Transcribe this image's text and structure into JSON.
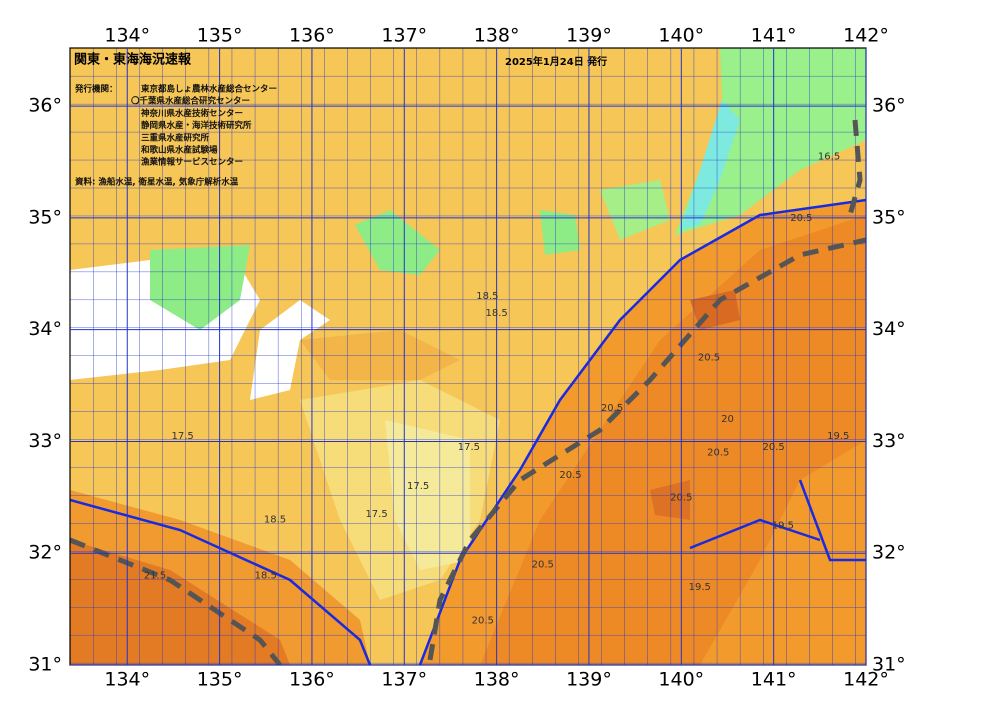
{
  "header": {
    "title": "関東・東海海況速報",
    "date": "2025年1月24日 発行"
  },
  "credits": {
    "label": "発行機関：",
    "agencies": [
      "東京都島しょ農林水産総合センター",
      "〇千葉県水産総合研究センター",
      "神奈川県水産技術センター",
      "静岡県水産・海洋技術研究所",
      "三重県水産研究所",
      "和歌山県水産試験場",
      "漁業情報サービスセンター"
    ],
    "source": "資料: 漁船水温, 衛星水温, 気象庁解析水温"
  },
  "map": {
    "xlim": [
      133.38,
      142
    ],
    "ylim": [
      31,
      36.52
    ],
    "xticks": [
      {
        "value": 134,
        "label": "134°"
      },
      {
        "value": 135,
        "label": "135°"
      },
      {
        "value": 136,
        "label": "136°"
      },
      {
        "value": 137,
        "label": "137°"
      },
      {
        "value": 138,
        "label": "138°"
      },
      {
        "value": 139,
        "label": "139°"
      },
      {
        "value": 140,
        "label": "140°"
      },
      {
        "value": 141,
        "label": "141°"
      },
      {
        "value": 142,
        "label": "142°"
      }
    ],
    "yticks": [
      {
        "value": 31,
        "label": "31°"
      },
      {
        "value": 32,
        "label": "32°"
      },
      {
        "value": 33,
        "label": "33°"
      },
      {
        "value": 34,
        "label": "34°"
      },
      {
        "value": 35,
        "label": "35°"
      },
      {
        "value": 36,
        "label": "36°"
      }
    ],
    "contour_labels": [
      {
        "lon": 137.9,
        "lat": 34.3,
        "value": 18.5
      },
      {
        "lon": 138.0,
        "lat": 34.15,
        "value": 18.5
      },
      {
        "lon": 134.6,
        "lat": 33.05,
        "value": 17.5
      },
      {
        "lon": 137.15,
        "lat": 32.6,
        "value": 17.5
      },
      {
        "lon": 136.7,
        "lat": 32.35,
        "value": 17.5
      },
      {
        "lon": 137.7,
        "lat": 32.95,
        "value": 17.5
      },
      {
        "lon": 139.25,
        "lat": 33.3,
        "value": 20.5
      },
      {
        "lon": 140.3,
        "lat": 33.75,
        "value": 20.5
      },
      {
        "lon": 140.4,
        "lat": 32.9,
        "value": 20.5
      },
      {
        "lon": 141.0,
        "lat": 32.95,
        "value": 20.5
      },
      {
        "lon": 140.5,
        "lat": 33.2,
        "value": 20
      },
      {
        "lon": 138.5,
        "lat": 31.9,
        "value": 20.5
      },
      {
        "lon": 138.8,
        "lat": 32.7,
        "value": 20.5
      },
      {
        "lon": 140.0,
        "lat": 32.5,
        "value": 20.5
      },
      {
        "lon": 141.3,
        "lat": 35.0,
        "value": 20.5
      },
      {
        "lon": 141.1,
        "lat": 32.25,
        "value": 19.5
      },
      {
        "lon": 141.7,
        "lat": 33.05,
        "value": 19.5
      },
      {
        "lon": 140.2,
        "lat": 31.7,
        "value": 19.5
      },
      {
        "lon": 135.6,
        "lat": 32.3,
        "value": 18.5
      },
      {
        "lon": 135.5,
        "lat": 31.8,
        "value": 18.5
      },
      {
        "lon": 134.3,
        "lat": 31.8,
        "value": 21.5
      },
      {
        "lon": 137.85,
        "lat": 31.4,
        "value": 20.5
      },
      {
        "lon": 141.6,
        "lat": 35.55,
        "value": 16.5
      }
    ]
  }
}
